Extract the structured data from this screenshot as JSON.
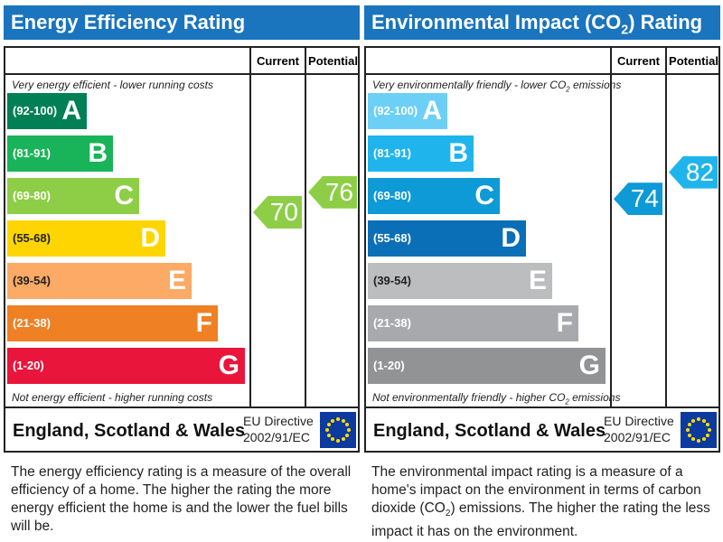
{
  "panels": [
    {
      "title": "Energy Efficiency Rating",
      "title_sub": "",
      "title_post": "",
      "header_color": "#1a74be",
      "col_current": "Current",
      "col_potential": "Potential",
      "top_note": "Very energy efficient - lower running costs",
      "top_note_sub": "",
      "top_note_post": "",
      "bottom_note": "Not energy efficient - higher running costs",
      "bottom_note_sub": "",
      "bottom_note_post": "",
      "bands": [
        {
          "range": "(92-100)",
          "letter": "A",
          "color": "#008054"
        },
        {
          "range": "(81-91)",
          "letter": "B",
          "color": "#19b459"
        },
        {
          "range": "(69-80)",
          "letter": "C",
          "color": "#8dce46"
        },
        {
          "range": "(55-68)",
          "letter": "D",
          "color": "#ffd500"
        },
        {
          "range": "(39-54)",
          "letter": "E",
          "color": "#fcaa65"
        },
        {
          "range": "(21-38)",
          "letter": "F",
          "color": "#ef8023"
        },
        {
          "range": "(1-20)",
          "letter": "G",
          "color": "#e9153b"
        }
      ],
      "current": 70,
      "current_color": "#8dce46",
      "potential": 76,
      "potential_color": "#8dce46",
      "region": "England, Scotland & Wales",
      "directive_1": "EU Directive",
      "directive_2": "2002/91/EC",
      "description": "The energy efficiency rating is a measure of the overall efficiency of a home. The higher the rating the more energy efficient the home is and the lower the fuel bills will be.",
      "desc_sub": "",
      "desc_post": ""
    },
    {
      "title": "Environmental Impact (CO",
      "title_sub": "2",
      "title_post": ") Rating",
      "header_color": "#1a74be",
      "col_current": "Current",
      "col_potential": "Potential",
      "top_note": "Very environmentally friendly - lower CO",
      "top_note_sub": "2",
      "top_note_post": " emissions",
      "bottom_note": "Not environmentally friendly - higher CO",
      "bottom_note_sub": "2",
      "bottom_note_post": " emissions",
      "bands": [
        {
          "range": "(92-100)",
          "letter": "A",
          "color": "#6ccff6"
        },
        {
          "range": "(81-91)",
          "letter": "B",
          "color": "#1fb5ec"
        },
        {
          "range": "(69-80)",
          "letter": "C",
          "color": "#0d9ad6"
        },
        {
          "range": "(55-68)",
          "letter": "D",
          "color": "#0b6fb7"
        },
        {
          "range": "(39-54)",
          "letter": "E",
          "color": "#bbbdbf"
        },
        {
          "range": "(21-38)",
          "letter": "F",
          "color": "#a7a9ac"
        },
        {
          "range": "(1-20)",
          "letter": "G",
          "color": "#919395"
        }
      ],
      "current": 74,
      "current_color": "#0d9ad6",
      "potential": 82,
      "potential_color": "#1fb5ec",
      "region": "England, Scotland & Wales",
      "directive_1": "EU Directive",
      "directive_2": "2002/91/EC",
      "description": "The environmental impact rating is a measure of a home's impact on the environment in terms of carbon dioxide (CO",
      "desc_sub": "2",
      "desc_post": ") emissions. The higher the rating the less impact it has on the environment."
    }
  ]
}
